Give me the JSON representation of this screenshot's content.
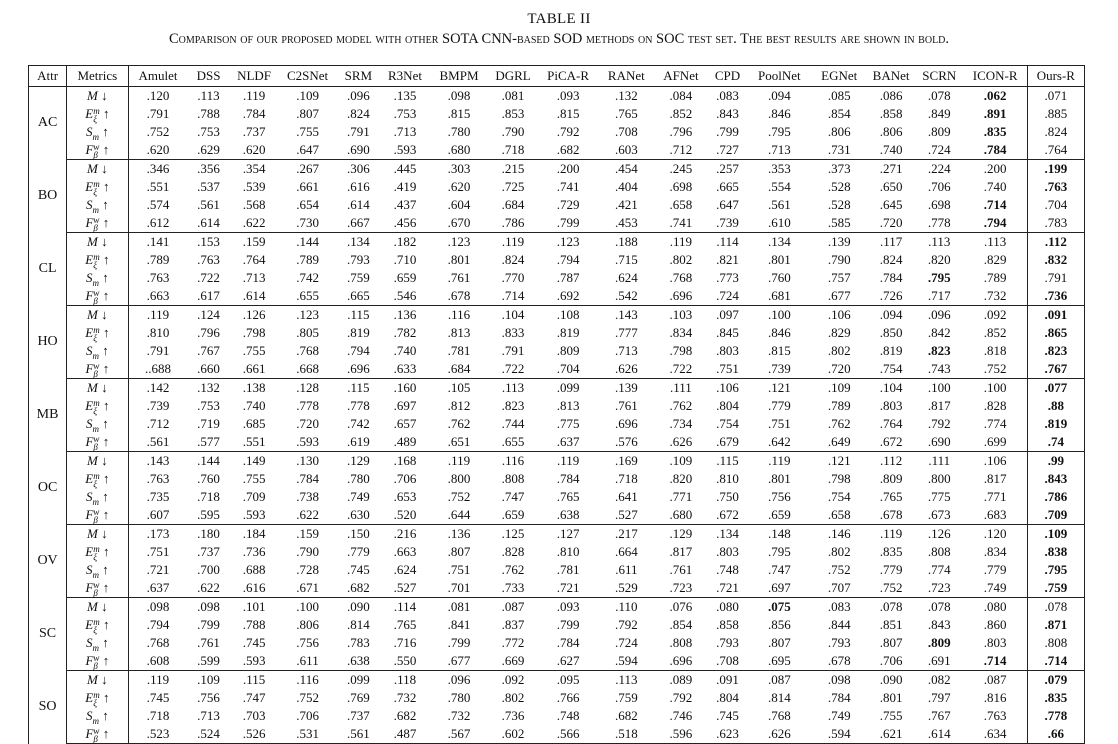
{
  "caption": {
    "title": "TABLE II",
    "description": "Comparison of our proposed model with other SOTA CNN-based SOD methods on SOC test set. The best results are shown in bold."
  },
  "headers": [
    "Attr",
    "Metrics",
    "Amulet",
    "DSS",
    "NLDF",
    "C2SNet",
    "SRM",
    "R3Net",
    "BMPM",
    "DGRL",
    "PiCA-R",
    "RANet",
    "AFNet",
    "CPD",
    "PoolNet",
    "EGNet",
    "BANet",
    "SCRN",
    "ICON-R",
    "Ours-R"
  ],
  "metrics": [
    {
      "base": "M",
      "sup": "",
      "sub": "",
      "arrow": "↓"
    },
    {
      "base": "E",
      "sup": "m",
      "sub": "ξ",
      "arrow": "↑"
    },
    {
      "base": "S",
      "sup": "",
      "sub": "m",
      "arrow": "↑"
    },
    {
      "base": "F",
      "sup": "w",
      "sub": "β",
      "arrow": "↑"
    }
  ],
  "groups": [
    {
      "attr": "AC",
      "rows": [
        {
          "values": [
            ".120",
            ".113",
            ".119",
            ".109",
            ".096",
            ".135",
            ".098",
            ".081",
            ".093",
            ".132",
            ".084",
            ".083",
            ".094",
            ".085",
            ".086",
            ".078",
            ".062",
            ".071"
          ],
          "bold": [
            16
          ]
        },
        {
          "values": [
            ".791",
            ".788",
            ".784",
            ".807",
            ".824",
            ".753",
            ".815",
            ".853",
            ".815",
            ".765",
            ".852",
            ".843",
            ".846",
            ".854",
            ".858",
            ".849",
            ".891",
            ".885"
          ],
          "bold": [
            16
          ]
        },
        {
          "values": [
            ".752",
            ".753",
            ".737",
            ".755",
            ".791",
            ".713",
            ".780",
            ".790",
            ".792",
            ".708",
            ".796",
            ".799",
            ".795",
            ".806",
            ".806",
            ".809",
            ".835",
            ".824"
          ],
          "bold": [
            16
          ]
        },
        {
          "values": [
            ".620",
            ".629",
            ".620",
            ".647",
            ".690",
            ".593",
            ".680",
            ".718",
            ".682",
            ".603",
            ".712",
            ".727",
            ".713",
            ".731",
            ".740",
            ".724",
            ".784",
            ".764"
          ],
          "bold": [
            16
          ]
        }
      ]
    },
    {
      "attr": "BO",
      "rows": [
        {
          "values": [
            ".346",
            ".356",
            ".354",
            ".267",
            ".306",
            ".445",
            ".303",
            ".215",
            ".200",
            ".454",
            ".245",
            ".257",
            ".353",
            ".373",
            ".271",
            ".224",
            ".200",
            ".199"
          ],
          "bold": [
            17
          ]
        },
        {
          "values": [
            ".551",
            ".537",
            ".539",
            ".661",
            ".616",
            ".419",
            ".620",
            ".725",
            ".741",
            ".404",
            ".698",
            ".665",
            ".554",
            ".528",
            ".650",
            ".706",
            ".740",
            ".763"
          ],
          "bold": [
            17
          ]
        },
        {
          "values": [
            ".574",
            ".561",
            ".568",
            ".654",
            ".614",
            ".437",
            ".604",
            ".684",
            ".729",
            ".421",
            ".658",
            ".647",
            ".561",
            ".528",
            ".645",
            ".698",
            ".714",
            ".704"
          ],
          "bold": [
            16
          ]
        },
        {
          "values": [
            ".612",
            ".614",
            ".622",
            ".730",
            ".667",
            ".456",
            ".670",
            ".786",
            ".799",
            ".453",
            ".741",
            ".739",
            ".610",
            ".585",
            ".720",
            ".778",
            ".794",
            ".783"
          ],
          "bold": [
            16
          ]
        }
      ]
    },
    {
      "attr": "CL",
      "rows": [
        {
          "values": [
            ".141",
            ".153",
            ".159",
            ".144",
            ".134",
            ".182",
            ".123",
            ".119",
            ".123",
            ".188",
            ".119",
            ".114",
            ".134",
            ".139",
            ".117",
            ".113",
            ".113",
            ".112"
          ],
          "bold": [
            17
          ]
        },
        {
          "values": [
            ".789",
            ".763",
            ".764",
            ".789",
            ".793",
            ".710",
            ".801",
            ".824",
            ".794",
            ".715",
            ".802",
            ".821",
            ".801",
            ".790",
            ".824",
            ".820",
            ".829",
            ".832"
          ],
          "bold": [
            17
          ]
        },
        {
          "values": [
            ".763",
            ".722",
            ".713",
            ".742",
            ".759",
            ".659",
            ".761",
            ".770",
            ".787",
            ".624",
            ".768",
            ".773",
            ".760",
            ".757",
            ".784",
            ".795",
            ".789",
            ".791"
          ],
          "bold": [
            15
          ]
        },
        {
          "values": [
            ".663",
            ".617",
            ".614",
            ".655",
            ".665",
            ".546",
            ".678",
            ".714",
            ".692",
            ".542",
            ".696",
            ".724",
            ".681",
            ".677",
            ".726",
            ".717",
            ".732",
            ".736"
          ],
          "bold": [
            17
          ]
        }
      ]
    },
    {
      "attr": "HO",
      "rows": [
        {
          "values": [
            ".119",
            ".124",
            ".126",
            ".123",
            ".115",
            ".136",
            ".116",
            ".104",
            ".108",
            ".143",
            ".103",
            ".097",
            ".100",
            ".106",
            ".094",
            ".096",
            ".092",
            ".091"
          ],
          "bold": [
            17
          ]
        },
        {
          "values": [
            ".810",
            ".796",
            ".798",
            ".805",
            ".819",
            ".782",
            ".813",
            ".833",
            ".819",
            ".777",
            ".834",
            ".845",
            ".846",
            ".829",
            ".850",
            ".842",
            ".852",
            ".865"
          ],
          "bold": [
            17
          ]
        },
        {
          "values": [
            ".791",
            ".767",
            ".755",
            ".768",
            ".794",
            ".740",
            ".781",
            ".791",
            ".809",
            ".713",
            ".798",
            ".803",
            ".815",
            ".802",
            ".819",
            ".823",
            ".818",
            ".823"
          ],
          "bold": [
            15,
            17
          ]
        },
        {
          "values": [
            "..688",
            ".660",
            ".661",
            ".668",
            ".696",
            ".633",
            ".684",
            ".722",
            ".704",
            ".626",
            ".722",
            ".751",
            ".739",
            ".720",
            ".754",
            ".743",
            ".752",
            ".767"
          ],
          "bold": [
            17
          ]
        }
      ]
    },
    {
      "attr": "MB",
      "rows": [
        {
          "values": [
            ".142",
            ".132",
            ".138",
            ".128",
            ".115",
            ".160",
            ".105",
            ".113",
            ".099",
            ".139",
            ".111",
            ".106",
            ".121",
            ".109",
            ".104",
            ".100",
            ".100",
            ".077"
          ],
          "bold": [
            17
          ]
        },
        {
          "values": [
            ".739",
            ".753",
            ".740",
            ".778",
            ".778",
            ".697",
            ".812",
            ".823",
            ".813",
            ".761",
            ".762",
            ".804",
            ".779",
            ".789",
            ".803",
            ".817",
            ".828",
            ".88"
          ],
          "bold": [
            17
          ]
        },
        {
          "values": [
            ".712",
            ".719",
            ".685",
            ".720",
            ".742",
            ".657",
            ".762",
            ".744",
            ".775",
            ".696",
            ".734",
            ".754",
            ".751",
            ".762",
            ".764",
            ".792",
            ".774",
            ".819"
          ],
          "bold": [
            17
          ]
        },
        {
          "values": [
            ".561",
            ".577",
            ".551",
            ".593",
            ".619",
            ".489",
            ".651",
            ".655",
            ".637",
            ".576",
            ".626",
            ".679",
            ".642",
            ".649",
            ".672",
            ".690",
            ".699",
            ".74"
          ],
          "bold": [
            17
          ]
        }
      ]
    },
    {
      "attr": "OC",
      "rows": [
        {
          "values": [
            ".143",
            ".144",
            ".149",
            ".130",
            ".129",
            ".168",
            ".119",
            ".116",
            ".119",
            ".169",
            ".109",
            ".115",
            ".119",
            ".121",
            ".112",
            ".111",
            ".106",
            ".99"
          ],
          "bold": [
            17
          ]
        },
        {
          "values": [
            ".763",
            ".760",
            ".755",
            ".784",
            ".780",
            ".706",
            ".800",
            ".808",
            ".784",
            ".718",
            ".820",
            ".810",
            ".801",
            ".798",
            ".809",
            ".800",
            ".817",
            ".843"
          ],
          "bold": [
            17
          ]
        },
        {
          "values": [
            ".735",
            ".718",
            ".709",
            ".738",
            ".749",
            ".653",
            ".752",
            ".747",
            ".765",
            ".641",
            ".771",
            ".750",
            ".756",
            ".754",
            ".765",
            ".775",
            ".771",
            ".786"
          ],
          "bold": [
            17
          ]
        },
        {
          "values": [
            ".607",
            ".595",
            ".593",
            ".622",
            ".630",
            ".520",
            ".644",
            ".659",
            ".638",
            ".527",
            ".680",
            ".672",
            ".659",
            ".658",
            ".678",
            ".673",
            ".683",
            ".709"
          ],
          "bold": [
            17
          ]
        }
      ]
    },
    {
      "attr": "OV",
      "rows": [
        {
          "values": [
            ".173",
            ".180",
            ".184",
            ".159",
            ".150",
            ".216",
            ".136",
            ".125",
            ".127",
            ".217",
            ".129",
            ".134",
            ".148",
            ".146",
            ".119",
            ".126",
            ".120",
            ".109"
          ],
          "bold": [
            17
          ]
        },
        {
          "values": [
            ".751",
            ".737",
            ".736",
            ".790",
            ".779",
            ".663",
            ".807",
            ".828",
            ".810",
            ".664",
            ".817",
            ".803",
            ".795",
            ".802",
            ".835",
            ".808",
            ".834",
            ".838"
          ],
          "bold": [
            17
          ]
        },
        {
          "values": [
            ".721",
            ".700",
            ".688",
            ".728",
            ".745",
            ".624",
            ".751",
            ".762",
            ".781",
            ".611",
            ".761",
            ".748",
            ".747",
            ".752",
            ".779",
            ".774",
            ".779",
            ".795"
          ],
          "bold": [
            17
          ]
        },
        {
          "values": [
            ".637",
            ".622",
            ".616",
            ".671",
            ".682",
            ".527",
            ".701",
            ".733",
            ".721",
            ".529",
            ".723",
            ".721",
            ".697",
            ".707",
            ".752",
            ".723",
            ".749",
            ".759"
          ],
          "bold": [
            17
          ]
        }
      ]
    },
    {
      "attr": "SC",
      "rows": [
        {
          "values": [
            ".098",
            ".098",
            ".101",
            ".100",
            ".090",
            ".114",
            ".081",
            ".087",
            ".093",
            ".110",
            ".076",
            ".080",
            ".075",
            ".083",
            ".078",
            ".078",
            ".080",
            ".078"
          ],
          "bold": [
            12
          ]
        },
        {
          "values": [
            ".794",
            ".799",
            ".788",
            ".806",
            ".814",
            ".765",
            ".841",
            ".837",
            ".799",
            ".792",
            ".854",
            ".858",
            ".856",
            ".844",
            ".851",
            ".843",
            ".860",
            ".871"
          ],
          "bold": [
            17
          ]
        },
        {
          "values": [
            ".768",
            ".761",
            ".745",
            ".756",
            ".783",
            ".716",
            ".799",
            ".772",
            ".784",
            ".724",
            ".808",
            ".793",
            ".807",
            ".793",
            ".807",
            ".809",
            ".803",
            ".808"
          ],
          "bold": [
            15
          ]
        },
        {
          "values": [
            ".608",
            ".599",
            ".593",
            ".611",
            ".638",
            ".550",
            ".677",
            ".669",
            ".627",
            ".594",
            ".696",
            ".708",
            ".695",
            ".678",
            ".706",
            ".691",
            ".714",
            ".714"
          ],
          "bold": [
            16,
            17
          ]
        }
      ]
    },
    {
      "attr": "SO",
      "rows": [
        {
          "values": [
            ".119",
            ".109",
            ".115",
            ".116",
            ".099",
            ".118",
            ".096",
            ".092",
            ".095",
            ".113",
            ".089",
            ".091",
            ".087",
            ".098",
            ".090",
            ".082",
            ".087",
            ".079"
          ],
          "bold": [
            17
          ]
        },
        {
          "values": [
            ".745",
            ".756",
            ".747",
            ".752",
            ".769",
            ".732",
            ".780",
            ".802",
            ".766",
            ".759",
            ".792",
            ".804",
            ".814",
            ".784",
            ".801",
            ".797",
            ".816",
            ".835"
          ],
          "bold": [
            17
          ]
        },
        {
          "values": [
            ".718",
            ".713",
            ".703",
            ".706",
            ".737",
            ".682",
            ".732",
            ".736",
            ".748",
            ".682",
            ".746",
            ".745",
            ".768",
            ".749",
            ".755",
            ".767",
            ".763",
            ".778"
          ],
          "bold": [
            17
          ]
        },
        {
          "values": [
            ".523",
            ".524",
            ".526",
            ".531",
            ".561",
            ".487",
            ".567",
            ".602",
            ".566",
            ".518",
            ".596",
            ".623",
            ".626",
            ".594",
            ".621",
            ".614",
            ".634",
            ".66"
          ],
          "bold": [
            17
          ]
        }
      ]
    }
  ]
}
